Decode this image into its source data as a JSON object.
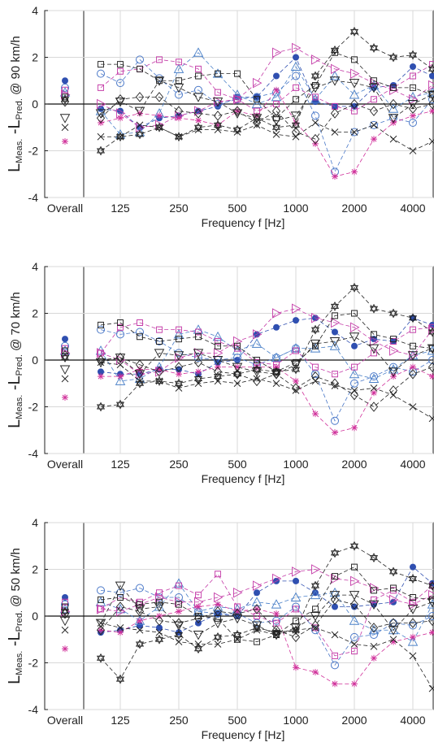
{
  "chart_data": [
    {
      "type": "line",
      "xlabel": "Frequency f [Hz]",
      "ylabel": [
        "L",
        "Meas.",
        " -L",
        "Pred.",
        " @ 90 km/h"
      ],
      "categories": [
        "Overall",
        null,
        "125",
        null,
        null,
        "250",
        null,
        null,
        "500",
        null,
        null,
        "1000",
        null,
        null,
        "2000",
        null,
        null,
        "4000",
        null
      ],
      "ylim": [
        -4,
        4
      ],
      "yticks": [
        -4,
        -2,
        0,
        2,
        4
      ],
      "grid": true,
      "series": [
        {
          "color": "#2f4fb0",
          "marker": "filled-circle",
          "values": [
            1.0,
            -0.2,
            -0.3,
            -1.0,
            -0.6,
            -0.5,
            -0.3,
            -0.1,
            0.3,
            0.3,
            1.2,
            2.0,
            0.1,
            -0.1,
            -0.1,
            0.7,
            0.8,
            1.6,
            1.2
          ]
        },
        {
          "color": "#4a78c8",
          "marker": "circle",
          "values": [
            0.7,
            1.3,
            0.9,
            1.9,
            1.1,
            0.4,
            0.6,
            0.0,
            0.2,
            0.3,
            0.5,
            1.2,
            -0.5,
            -2.9,
            -1.2,
            -0.9,
            -0.6,
            -0.8,
            0.2
          ]
        },
        {
          "color": "#4a80c8",
          "marker": "triangle-up",
          "values": [
            0.5,
            -0.3,
            -1.3,
            -1.2,
            -0.4,
            1.5,
            2.2,
            1.3,
            0.4,
            0.0,
            0.3,
            1.6,
            0.2,
            1.2,
            0.4,
            0.8,
            -0.2,
            0.3,
            0.5
          ]
        },
        {
          "color": "#c43ca8",
          "marker": "triangle-right",
          "values": [
            0.4,
            0.0,
            -0.4,
            -1.0,
            -0.9,
            -0.5,
            -0.3,
            0.1,
            0.2,
            0.9,
            2.2,
            2.4,
            1.9,
            1.5,
            1.3,
            0.9,
            0.6,
            0.2,
            0.8
          ]
        },
        {
          "color": "#c43ca8",
          "marker": "square",
          "values": [
            0.6,
            0.7,
            1.4,
            1.5,
            1.9,
            1.8,
            1.5,
            0.5,
            0.2,
            -0.3,
            0.0,
            0.7,
            0.3,
            -0.1,
            -0.3,
            0.2,
            0.7,
            1.2,
            1.7
          ]
        },
        {
          "color": "#d0309a",
          "marker": "asterisk",
          "values": [
            -1.6,
            -0.8,
            -0.6,
            -0.4,
            -0.5,
            -0.6,
            -0.7,
            -0.9,
            -0.3,
            -0.5,
            0.6,
            -0.8,
            -1.7,
            -3.1,
            -2.9,
            -1.5,
            -0.8,
            -0.5,
            -0.3
          ]
        },
        {
          "color": "#222222",
          "marker": "square",
          "values": [
            0.3,
            1.7,
            1.7,
            1.5,
            1.0,
            1.0,
            1.2,
            1.3,
            1.3,
            0.2,
            -0.6,
            0.2,
            0.8,
            2.2,
            1.9,
            1.0,
            0.7,
            0.7,
            0.4
          ]
        },
        {
          "color": "#222222",
          "marker": "triangle-down",
          "values": [
            -0.6,
            -0.4,
            0.1,
            -0.3,
            1.0,
            0.7,
            0.3,
            0.1,
            -0.4,
            -0.6,
            -0.7,
            -0.5,
            0.7,
            1.0,
            0.9,
            0.7,
            -0.6,
            0.0,
            0.4
          ]
        },
        {
          "color": "#222222",
          "marker": "diamond",
          "values": [
            0.1,
            -0.6,
            0.2,
            0.3,
            0.3,
            -0.3,
            -0.4,
            -0.5,
            -0.3,
            -0.8,
            -0.3,
            -1.2,
            -1.5,
            -0.4,
            0.0,
            -0.3,
            0.0,
            -0.2,
            0.0
          ]
        },
        {
          "color": "#222222",
          "marker": "x",
          "values": [
            -1.0,
            -1.4,
            -1.4,
            -0.9,
            -1.0,
            -1.4,
            -1.1,
            -1.1,
            -1.2,
            -0.9,
            -1.3,
            -1.4,
            -0.8,
            -1.2,
            -1.2,
            -0.9,
            -1.5,
            -2.0,
            -1.6
          ]
        },
        {
          "color": "#222222",
          "marker": "hexagram",
          "values": [
            0.2,
            -2.0,
            -1.4,
            -1.3,
            -1.0,
            -1.4,
            -1.0,
            -0.9,
            -1.1,
            -0.6,
            -1.0,
            -0.9,
            1.2,
            2.3,
            3.1,
            2.4,
            2.0,
            2.1,
            1.5
          ]
        }
      ]
    },
    {
      "type": "line",
      "xlabel": "Frequency f [Hz]",
      "ylabel": [
        "L",
        "Meas.",
        " -L",
        "Pred.",
        " @ 70 km/h"
      ],
      "categories": [
        "Overall",
        null,
        "125",
        null,
        null,
        "250",
        null,
        null,
        "500",
        null,
        null,
        "1000",
        null,
        null,
        "2000",
        null,
        null,
        "4000",
        null
      ],
      "ylim": [
        -4,
        4
      ],
      "yticks": [
        -4,
        -2,
        0,
        2,
        4
      ],
      "grid": true,
      "series": [
        {
          "color": "#2f4fb0",
          "marker": "filled-circle",
          "values": [
            0.9,
            -0.5,
            -0.6,
            -0.6,
            -0.4,
            -0.4,
            -0.6,
            -0.1,
            0.0,
            1.1,
            1.4,
            1.7,
            1.8,
            1.2,
            0.6,
            0.9,
            0.8,
            1.8,
            1.5
          ]
        },
        {
          "color": "#4a78c8",
          "marker": "circle",
          "values": [
            0.6,
            1.3,
            1.1,
            1.2,
            0.8,
            0.3,
            0.1,
            0.0,
            0.1,
            -0.2,
            0.1,
            0.5,
            -0.6,
            -2.6,
            -1.0,
            -0.7,
            -0.3,
            -0.5,
            0.0
          ]
        },
        {
          "color": "#4a80c8",
          "marker": "triangle-up",
          "values": [
            0.4,
            0.4,
            -0.9,
            -0.8,
            -0.3,
            1.1,
            1.3,
            1.0,
            0.4,
            0.7,
            0.1,
            0.5,
            0.5,
            0.6,
            -0.6,
            -0.8,
            -0.4,
            0.2,
            0.4
          ]
        },
        {
          "color": "#c43ca8",
          "marker": "triangle-right",
          "values": [
            0.3,
            0.3,
            0.0,
            -0.6,
            -0.5,
            0.1,
            0.3,
            0.3,
            0.8,
            1.1,
            2.0,
            2.2,
            1.8,
            1.6,
            1.4,
            0.8,
            0.4,
            0.2,
            1.3
          ]
        },
        {
          "color": "#c43ca8",
          "marker": "square",
          "values": [
            0.5,
            0.3,
            1.4,
            1.6,
            1.3,
            1.3,
            1.2,
            0.8,
            0.5,
            -0.1,
            -0.2,
            0.4,
            -0.3,
            -0.6,
            -0.3,
            0.3,
            0.8,
            1.3,
            1.4
          ]
        },
        {
          "color": "#d0309a",
          "marker": "asterisk",
          "values": [
            -1.6,
            -0.7,
            -0.7,
            -0.4,
            -0.4,
            -0.6,
            -0.5,
            -0.3,
            -0.3,
            -0.3,
            -0.3,
            -0.9,
            -2.3,
            -3.1,
            -2.9,
            -1.4,
            -0.7,
            -0.3,
            -0.7
          ]
        },
        {
          "color": "#222222",
          "marker": "square",
          "values": [
            0.4,
            1.5,
            1.6,
            1.0,
            0.8,
            0.9,
            1.0,
            0.6,
            0.6,
            0.0,
            -0.5,
            -0.1,
            0.6,
            1.9,
            2.0,
            1.1,
            0.9,
            0.6,
            0.5
          ]
        },
        {
          "color": "#222222",
          "marker": "triangle-down",
          "values": [
            -0.4,
            -0.1,
            0.1,
            -0.6,
            0.3,
            0.2,
            0.3,
            0.0,
            -0.3,
            -0.5,
            -0.6,
            -0.2,
            0.7,
            0.8,
            1.0,
            0.5,
            -0.5,
            0.2,
            0.5
          ]
        },
        {
          "color": "#222222",
          "marker": "diamond",
          "values": [
            0.2,
            0.0,
            0.1,
            -0.2,
            -0.5,
            -0.3,
            -0.1,
            -0.5,
            -0.6,
            -0.9,
            -0.6,
            -1.2,
            -0.7,
            -1.0,
            -1.5,
            -2.0,
            -1.3,
            -0.6,
            -0.3
          ]
        },
        {
          "color": "#222222",
          "marker": "x",
          "values": [
            -0.8,
            -0.1,
            -0.2,
            -0.9,
            -0.9,
            -1.2,
            -1.0,
            -0.9,
            -1.0,
            -0.8,
            -1.0,
            -1.3,
            -0.9,
            -1.1,
            -1.3,
            -1.2,
            -1.5,
            -2.0,
            -2.5
          ]
        },
        {
          "color": "#222222",
          "marker": "hexagram",
          "values": [
            0.1,
            -2.0,
            -1.9,
            -1.0,
            -0.9,
            -1.0,
            -0.8,
            -0.7,
            -0.6,
            -0.4,
            -0.5,
            -0.4,
            1.3,
            2.3,
            3.1,
            2.2,
            2.0,
            1.8,
            1.2
          ]
        }
      ]
    },
    {
      "type": "line",
      "xlabel": "Frequency f [Hz]",
      "ylabel": [
        "L",
        "Meas.",
        " -L",
        "Pred.",
        " @ 50 km/h"
      ],
      "categories": [
        "Overall",
        null,
        "125",
        null,
        null,
        "250",
        null,
        null,
        "500",
        null,
        null,
        "1000",
        null,
        null,
        "2000",
        null,
        null,
        "4000",
        null
      ],
      "ylim": [
        -4,
        4
      ],
      "yticks": [
        -4,
        -2,
        0,
        2,
        4
      ],
      "grid": true,
      "series": [
        {
          "color": "#2f4fb0",
          "marker": "filled-circle",
          "values": [
            0.8,
            -0.7,
            -0.6,
            -0.4,
            -0.5,
            -0.7,
            -0.3,
            0.1,
            0.0,
            1.0,
            1.5,
            1.5,
            1.0,
            0.4,
            0.4,
            0.5,
            0.6,
            2.1,
            1.4
          ]
        },
        {
          "color": "#4a78c8",
          "marker": "circle",
          "values": [
            0.5,
            1.1,
            1.0,
            1.2,
            0.8,
            0.8,
            0.2,
            0.1,
            0.1,
            -0.3,
            -0.2,
            0.4,
            -0.6,
            -2.1,
            -0.9,
            -0.8,
            -0.3,
            -0.4,
            0.0
          ]
        },
        {
          "color": "#4a80c8",
          "marker": "triangle-up",
          "values": [
            0.3,
            0.6,
            0.3,
            -0.2,
            0.4,
            1.4,
            0.2,
            0.4,
            0.3,
            0.6,
            0.5,
            0.8,
            0.9,
            1.0,
            -0.2,
            -0.6,
            -0.6,
            -1.1,
            0.5
          ]
        },
        {
          "color": "#c43ca8",
          "marker": "triangle-right",
          "values": [
            0.2,
            0.3,
            0.2,
            0.5,
            0.8,
            0.6,
            0.6,
            0.8,
            1.0,
            1.3,
            1.6,
            1.9,
            2.0,
            1.6,
            1.5,
            1.2,
            0.7,
            0.5,
            0.9
          ]
        },
        {
          "color": "#c43ca8",
          "marker": "square",
          "values": [
            0.6,
            0.3,
            0.8,
            0.6,
            1.0,
            1.3,
            0.9,
            1.8,
            0.4,
            0.0,
            -0.3,
            0.3,
            -0.5,
            -1.7,
            -1.5,
            0.7,
            1.1,
            0.6,
            1.3
          ]
        },
        {
          "color": "#d0309a",
          "marker": "asterisk",
          "values": [
            -1.4,
            -0.6,
            -0.7,
            -0.2,
            0.0,
            0.2,
            0.4,
            0.5,
            0.2,
            0.3,
            0.1,
            -2.2,
            -2.4,
            -2.9,
            -2.9,
            -1.8,
            -1.1,
            -0.9,
            -0.7
          ]
        },
        {
          "color": "#222222",
          "marker": "square",
          "values": [
            0.4,
            0.7,
            0.8,
            0.5,
            0.6,
            0.5,
            0.0,
            -0.1,
            -1.0,
            -1.1,
            -0.8,
            -0.2,
            0.3,
            1.7,
            2.1,
            1.1,
            1.2,
            0.8,
            0.7
          ]
        },
        {
          "color": "#222222",
          "marker": "triangle-down",
          "values": [
            -0.2,
            -0.3,
            1.3,
            0.3,
            0.4,
            -0.4,
            -0.8,
            -0.3,
            -0.1,
            -0.4,
            -0.8,
            -0.5,
            0.0,
            0.9,
            0.9,
            0.5,
            -0.6,
            0.3,
            0.6
          ]
        },
        {
          "color": "#222222",
          "marker": "diamond",
          "values": [
            0.1,
            -0.6,
            0.4,
            0.2,
            -0.2,
            -0.3,
            -0.1,
            0.2,
            0.1,
            0.3,
            -0.6,
            -0.9,
            -0.4,
            0.7,
            0.5,
            -0.5,
            -0.3,
            -0.3,
            -0.2
          ]
        },
        {
          "color": "#222222",
          "marker": "x",
          "values": [
            -0.6,
            -0.3,
            -0.5,
            -0.6,
            -0.7,
            -1.1,
            -1.2,
            -1.2,
            -1.0,
            -0.6,
            -0.8,
            -0.6,
            -0.5,
            -0.8,
            -1.2,
            -1.3,
            -1.0,
            -1.7,
            -3.1
          ]
        },
        {
          "color": "#222222",
          "marker": "hexagram",
          "values": [
            0.2,
            -1.8,
            -2.7,
            -1.2,
            -1.0,
            -0.8,
            -1.4,
            -0.9,
            -0.8,
            -0.5,
            -0.7,
            -0.6,
            1.3,
            2.7,
            3.0,
            2.5,
            1.9,
            1.6,
            1.3
          ]
        }
      ]
    }
  ]
}
